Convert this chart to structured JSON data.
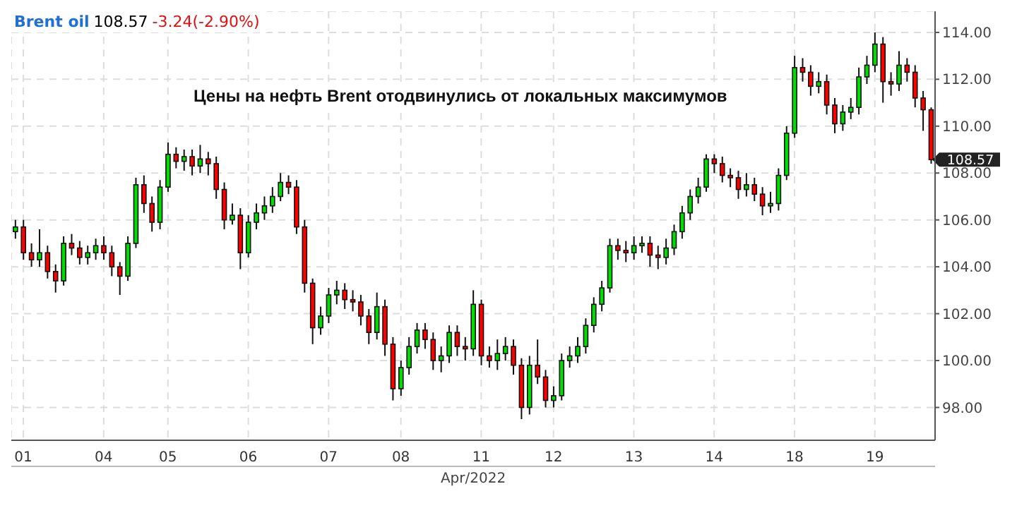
{
  "chart_data": {
    "type": "candlestick",
    "title": "Цены на нефть Brent отодвинулись от локальных максимумов",
    "xlabel": "Apr/2022",
    "annotations": [
      "Brent oil",
      "108.57",
      "-3.24(-2.90%)",
      "108.57"
    ],
    "categories": [
      null,
      "01",
      null,
      null,
      null,
      null,
      null,
      null,
      null,
      null,
      null,
      "04",
      null,
      null,
      null,
      null,
      null,
      null,
      null,
      "05",
      null,
      null,
      null,
      null,
      null,
      null,
      null,
      null,
      null,
      "06",
      null,
      null,
      null,
      null,
      null,
      null,
      null,
      null,
      null,
      "07",
      null,
      null,
      null,
      null,
      null,
      null,
      null,
      null,
      "08",
      null,
      null,
      null,
      null,
      null,
      null,
      null,
      null,
      null,
      "11",
      null,
      null,
      null,
      null,
      null,
      null,
      null,
      null,
      "12",
      null,
      null,
      null,
      null,
      null,
      null,
      null,
      null,
      null,
      "13",
      null,
      null,
      null,
      null,
      null,
      null,
      null,
      null,
      null,
      "14",
      null,
      null,
      null,
      null,
      null,
      null,
      null,
      null,
      null,
      "18",
      null,
      null,
      null,
      null,
      null,
      null,
      null,
      null,
      null,
      "19",
      null,
      null,
      null,
      null,
      null,
      null,
      null
    ],
    "ohlc": [
      [
        105.5,
        106.0,
        105.2,
        105.7
      ],
      [
        105.7,
        106.0,
        104.3,
        104.6
      ],
      [
        104.6,
        105.0,
        104.0,
        104.3
      ],
      [
        104.3,
        105.6,
        104.0,
        104.6
      ],
      [
        104.6,
        104.9,
        103.5,
        103.8
      ],
      [
        103.8,
        104.1,
        102.9,
        103.4
      ],
      [
        103.4,
        105.3,
        103.2,
        105.0
      ],
      [
        105.0,
        105.4,
        104.5,
        104.8
      ],
      [
        104.8,
        105.1,
        104.1,
        104.4
      ],
      [
        104.4,
        104.9,
        104.1,
        104.6
      ],
      [
        104.6,
        105.2,
        104.3,
        104.9
      ],
      [
        104.9,
        105.3,
        104.3,
        104.6
      ],
      [
        104.6,
        104.9,
        103.6,
        104.0
      ],
      [
        104.0,
        104.2,
        102.8,
        103.6
      ],
      [
        103.6,
        105.3,
        103.4,
        105.0
      ],
      [
        105.0,
        107.8,
        104.8,
        107.5
      ],
      [
        107.5,
        107.9,
        106.3,
        106.7
      ],
      [
        106.7,
        107.0,
        105.5,
        105.9
      ],
      [
        105.9,
        107.7,
        105.6,
        107.4
      ],
      [
        107.4,
        109.3,
        107.2,
        108.8
      ],
      [
        108.8,
        109.1,
        108.2,
        108.5
      ],
      [
        108.5,
        109.0,
        108.1,
        108.7
      ],
      [
        108.7,
        109.0,
        107.9,
        108.3
      ],
      [
        108.3,
        109.2,
        108.0,
        108.6
      ],
      [
        108.6,
        108.9,
        107.9,
        108.4
      ],
      [
        108.4,
        108.7,
        106.9,
        107.3
      ],
      [
        107.3,
        107.6,
        105.6,
        106.0
      ],
      [
        106.0,
        106.7,
        105.8,
        106.2
      ],
      [
        106.2,
        106.5,
        103.9,
        104.6
      ],
      [
        104.6,
        106.2,
        104.4,
        105.9
      ],
      [
        105.9,
        106.7,
        105.6,
        106.3
      ],
      [
        106.3,
        107.0,
        106.0,
        106.6
      ],
      [
        106.6,
        107.4,
        106.3,
        107.0
      ],
      [
        107.0,
        108.0,
        106.8,
        107.6
      ],
      [
        107.6,
        107.9,
        107.1,
        107.4
      ],
      [
        107.4,
        107.7,
        105.4,
        105.7
      ],
      [
        105.7,
        106.0,
        102.9,
        103.3
      ],
      [
        103.3,
        103.5,
        100.7,
        101.4
      ],
      [
        101.4,
        102.3,
        101.1,
        101.9
      ],
      [
        101.9,
        103.1,
        101.6,
        102.8
      ],
      [
        102.8,
        103.4,
        102.4,
        103.0
      ],
      [
        103.0,
        103.3,
        102.2,
        102.6
      ],
      [
        102.6,
        103.0,
        102.1,
        102.5
      ],
      [
        102.5,
        102.8,
        101.5,
        101.9
      ],
      [
        101.9,
        102.2,
        100.7,
        101.2
      ],
      [
        101.2,
        102.9,
        100.9,
        102.3
      ],
      [
        102.3,
        102.6,
        100.2,
        100.7
      ],
      [
        100.7,
        101.0,
        98.3,
        98.8
      ],
      [
        98.8,
        100.0,
        98.5,
        99.7
      ],
      [
        99.7,
        101.0,
        99.4,
        100.6
      ],
      [
        100.6,
        101.6,
        100.3,
        101.3
      ],
      [
        101.3,
        101.6,
        100.5,
        100.9
      ],
      [
        100.9,
        101.2,
        99.6,
        100.0
      ],
      [
        100.0,
        100.6,
        99.5,
        100.2
      ],
      [
        100.2,
        101.5,
        99.9,
        101.2
      ],
      [
        101.2,
        101.5,
        100.2,
        100.6
      ],
      [
        100.6,
        101.0,
        100.0,
        100.5
      ],
      [
        100.5,
        103.0,
        100.2,
        102.4
      ],
      [
        102.4,
        102.6,
        99.8,
        100.2
      ],
      [
        100.2,
        100.6,
        99.7,
        100.0
      ],
      [
        100.0,
        100.9,
        99.6,
        100.3
      ],
      [
        100.3,
        101.0,
        100.0,
        100.6
      ],
      [
        100.6,
        100.9,
        99.4,
        99.8
      ],
      [
        99.8,
        100.1,
        97.5,
        98.0
      ],
      [
        98.0,
        100.2,
        97.7,
        99.8
      ],
      [
        99.8,
        100.9,
        99.0,
        99.3
      ],
      [
        99.3,
        99.6,
        98.0,
        98.3
      ],
      [
        98.3,
        98.9,
        98.0,
        98.5
      ],
      [
        98.5,
        100.3,
        98.3,
        100.0
      ],
      [
        100.0,
        100.6,
        99.7,
        100.2
      ],
      [
        100.2,
        101.0,
        99.9,
        100.6
      ],
      [
        100.6,
        101.8,
        100.3,
        101.5
      ],
      [
        101.5,
        102.7,
        101.2,
        102.4
      ],
      [
        102.4,
        103.4,
        102.1,
        103.1
      ],
      [
        103.1,
        105.2,
        102.9,
        104.9
      ],
      [
        104.9,
        105.2,
        104.3,
        104.7
      ],
      [
        104.7,
        105.1,
        104.2,
        104.6
      ],
      [
        104.6,
        105.3,
        104.3,
        104.9
      ],
      [
        104.9,
        105.3,
        104.6,
        105.0
      ],
      [
        105.0,
        105.3,
        104.0,
        104.5
      ],
      [
        104.5,
        104.9,
        103.9,
        104.4
      ],
      [
        104.4,
        105.2,
        104.1,
        104.8
      ],
      [
        104.8,
        105.8,
        104.5,
        105.5
      ],
      [
        105.5,
        106.6,
        105.2,
        106.3
      ],
      [
        106.3,
        107.3,
        106.0,
        107.0
      ],
      [
        107.0,
        107.8,
        106.7,
        107.4
      ],
      [
        107.4,
        108.8,
        107.2,
        108.6
      ],
      [
        108.6,
        108.8,
        108.0,
        108.4
      ],
      [
        108.4,
        108.7,
        107.6,
        107.9
      ],
      [
        107.9,
        108.2,
        107.4,
        107.8
      ],
      [
        107.8,
        108.1,
        106.9,
        107.3
      ],
      [
        107.3,
        108.0,
        107.0,
        107.5
      ],
      [
        107.5,
        107.8,
        106.8,
        107.1
      ],
      [
        107.1,
        107.4,
        106.2,
        106.6
      ],
      [
        106.6,
        107.2,
        106.3,
        106.7
      ],
      [
        106.7,
        108.2,
        106.4,
        107.9
      ],
      [
        107.9,
        110.0,
        107.7,
        109.7
      ],
      [
        109.7,
        113.0,
        109.5,
        112.5
      ],
      [
        112.5,
        112.9,
        111.9,
        112.3
      ],
      [
        112.3,
        112.6,
        111.3,
        111.7
      ],
      [
        111.7,
        112.3,
        111.4,
        111.9
      ],
      [
        111.9,
        112.2,
        110.5,
        110.9
      ],
      [
        110.9,
        111.2,
        109.7,
        110.1
      ],
      [
        110.1,
        110.9,
        109.8,
        110.6
      ],
      [
        110.6,
        111.2,
        110.3,
        110.8
      ],
      [
        110.8,
        112.5,
        110.5,
        112.1
      ],
      [
        112.1,
        113.0,
        111.8,
        112.6
      ],
      [
        112.6,
        114.0,
        112.3,
        113.5
      ],
      [
        113.5,
        113.8,
        111.0,
        111.9
      ],
      [
        111.9,
        112.3,
        111.3,
        111.8
      ],
      [
        111.8,
        113.2,
        111.5,
        112.6
      ],
      [
        112.6,
        112.9,
        111.9,
        112.3
      ],
      [
        112.3,
        112.6,
        110.8,
        111.2
      ],
      [
        111.2,
        111.5,
        109.8,
        110.7
      ],
      [
        110.7,
        110.8,
        108.4,
        108.57
      ]
    ],
    "colors": [
      "#00dd00",
      "#ff0000",
      "#ff0000",
      "#00dd00",
      "#ff0000",
      "#ff0000",
      "#00dd00",
      "#ff0000",
      "#ff0000",
      "#00dd00",
      "#00dd00",
      "#ff0000",
      "#ff0000",
      "#ff0000",
      "#00dd00",
      "#00dd00",
      "#ff0000",
      "#ff0000",
      "#00dd00",
      "#00dd00",
      "#ff0000",
      "#00dd00",
      "#ff0000",
      "#00dd00",
      "#ff0000",
      "#ff0000",
      "#ff0000",
      "#00dd00",
      "#ff0000",
      "#00dd00",
      "#00dd00",
      "#00dd00",
      "#00dd00",
      "#00dd00",
      "#ff0000",
      "#ff0000",
      "#ff0000",
      "#ff0000",
      "#00dd00",
      "#00dd00",
      "#00dd00",
      "#ff0000",
      "#ff0000",
      "#ff0000",
      "#ff0000",
      "#00dd00",
      "#ff0000",
      "#ff0000",
      "#00dd00",
      "#00dd00",
      "#00dd00",
      "#ff0000",
      "#ff0000",
      "#00dd00",
      "#00dd00",
      "#ff0000",
      "#ff0000",
      "#00dd00",
      "#ff0000",
      "#ff0000",
      "#00dd00",
      "#00dd00",
      "#ff0000",
      "#ff0000",
      "#00dd00",
      "#ff0000",
      "#ff0000",
      "#00dd00",
      "#00dd00",
      "#00dd00",
      "#00dd00",
      "#00dd00",
      "#00dd00",
      "#00dd00",
      "#00dd00",
      "#ff0000",
      "#ff0000",
      "#00dd00",
      "#00dd00",
      "#ff0000",
      "#ff0000",
      "#00dd00",
      "#00dd00",
      "#00dd00",
      "#00dd00",
      "#00dd00",
      "#00dd00",
      "#ff0000",
      "#ff0000",
      "#ff0000",
      "#ff0000",
      "#00dd00",
      "#ff0000",
      "#ff0000",
      "#00dd00",
      "#00dd00",
      "#00dd00",
      "#00dd00",
      "#ff0000",
      "#ff0000",
      "#00dd00",
      "#ff0000",
      "#ff0000",
      "#00dd00",
      "#00dd00",
      "#00dd00",
      "#00dd00",
      "#00dd00",
      "#ff0000",
      "#ff0000",
      "#00dd00",
      "#ff0000",
      "#ff0000",
      "#ff0000",
      "#ff0000"
    ],
    "ylim": [
      96.6,
      114.9
    ],
    "yticks": [
      {
        "value": 98,
        "label": "98.00"
      },
      {
        "value": 100,
        "label": "100.00"
      },
      {
        "value": 102,
        "label": "102.00"
      },
      {
        "value": 104,
        "label": "104.00"
      },
      {
        "value": 106,
        "label": "106.00"
      },
      {
        "value": 108,
        "label": "108.00"
      },
      {
        "value": 110,
        "label": "110.00"
      },
      {
        "value": 112,
        "label": "112.00"
      },
      {
        "value": 114,
        "label": "114.00"
      }
    ],
    "grid": true
  }
}
